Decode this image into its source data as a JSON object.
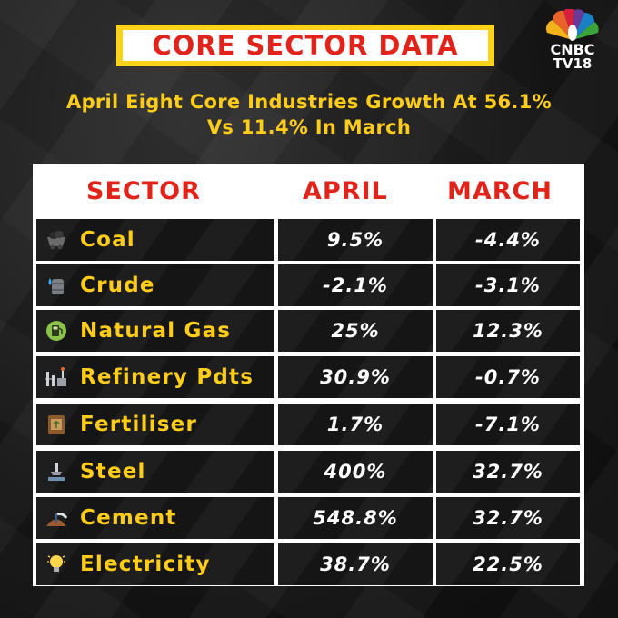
{
  "header": {
    "title": "CORE SECTOR DATA",
    "subtitle_line1": "April Eight Core Industries Growth At 56.1%",
    "subtitle_line2": "Vs 11.4% In March"
  },
  "logo": {
    "line1": "CNBC",
    "line2": "TV18"
  },
  "colors": {
    "title_red": "#e2231a",
    "accent_yellow": "#ffcc1a",
    "background": "#141414"
  },
  "table": {
    "columns": [
      "SECTOR",
      "APRIL",
      "MARCH"
    ],
    "rows": [
      {
        "sector": "Coal",
        "icon": "coal-cart-icon",
        "april": "9.5%",
        "march": "-4.4%"
      },
      {
        "sector": "Crude",
        "icon": "oil-barrel-icon",
        "april": "-2.1%",
        "march": "-3.1%"
      },
      {
        "sector": "Natural Gas",
        "icon": "gas-pump-icon",
        "april": "25%",
        "march": "12.3%"
      },
      {
        "sector": "Refinery Pdts",
        "icon": "refinery-icon",
        "april": "30.9%",
        "march": "-0.7%"
      },
      {
        "sector": "Fertiliser",
        "icon": "fertiliser-bag-icon",
        "april": "1.7%",
        "march": "-7.1%"
      },
      {
        "sector": "Steel",
        "icon": "steel-mill-icon",
        "april": "400%",
        "march": "32.7%"
      },
      {
        "sector": "Cement",
        "icon": "cement-mixer-icon",
        "april": "548.8%",
        "march": "32.7%"
      },
      {
        "sector": "Electricity",
        "icon": "light-bulb-icon",
        "april": "38.7%",
        "march": "22.5%"
      }
    ]
  }
}
